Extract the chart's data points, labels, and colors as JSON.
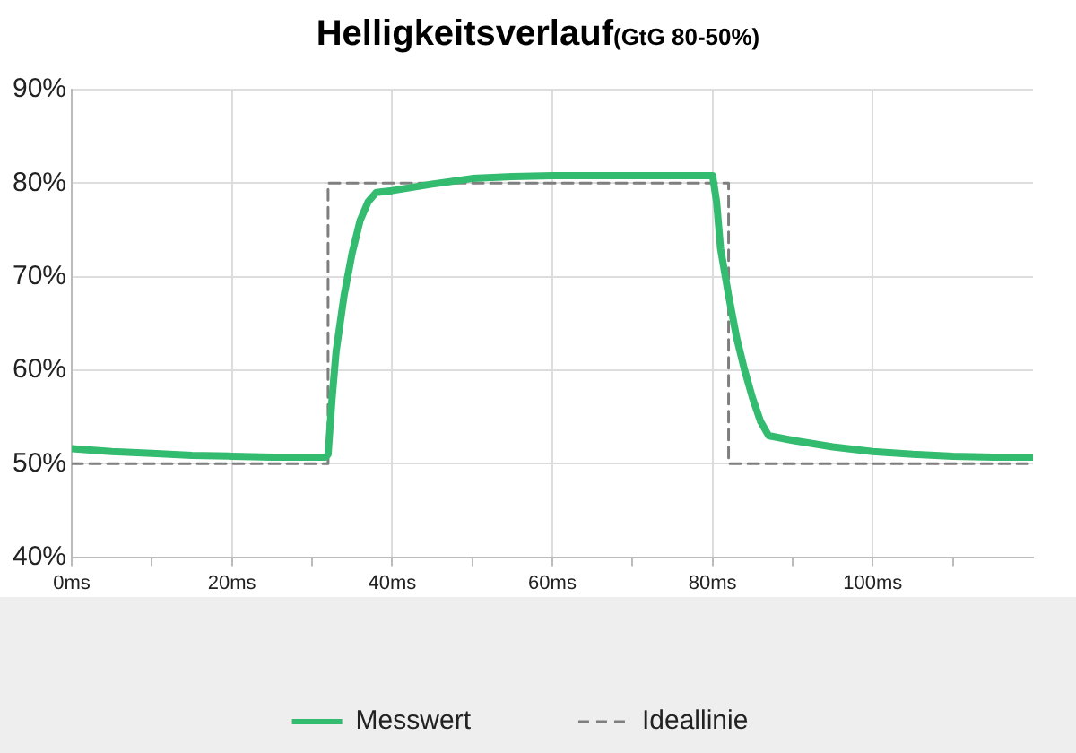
{
  "chart_data": {
    "type": "line",
    "title": "Helligkeitsverlauf",
    "subtitle": "(GtG 80-50%)",
    "xlim": [
      0,
      120
    ],
    "xticks": [
      {
        "value": 0,
        "label": "0ms"
      },
      {
        "value": 10,
        "label": null
      },
      {
        "value": 20,
        "label": "20ms"
      },
      {
        "value": 30,
        "label": null
      },
      {
        "value": 40,
        "label": "40ms"
      },
      {
        "value": 50,
        "label": null
      },
      {
        "value": 60,
        "label": "60ms"
      },
      {
        "value": 70,
        "label": null
      },
      {
        "value": 80,
        "label": "80ms"
      },
      {
        "value": 90,
        "label": null
      },
      {
        "value": 100,
        "label": "100ms"
      },
      {
        "value": 110,
        "label": null
      }
    ],
    "ylim": [
      40,
      90
    ],
    "yticks": [
      {
        "value": 40,
        "label": "40%"
      },
      {
        "value": 50,
        "label": "50%"
      },
      {
        "value": 60,
        "label": "60%"
      },
      {
        "value": 70,
        "label": "70%"
      },
      {
        "value": 80,
        "label": "80%"
      },
      {
        "value": 90,
        "label": "90%"
      }
    ],
    "grid": true,
    "legend": "bottom",
    "marker": "none",
    "series": [
      {
        "name": "Messwert",
        "color": "#33bb70",
        "line_style": "solid",
        "x": [
          0,
          5,
          10,
          15,
          20,
          25,
          31.7,
          32,
          32.5,
          33,
          34,
          35,
          36,
          37,
          38,
          40,
          45,
          50,
          55,
          60,
          70,
          80,
          80.5,
          81,
          82,
          83,
          84,
          85,
          86,
          87,
          90,
          95,
          100,
          105,
          110,
          115,
          120
        ],
        "values": [
          51.6,
          51.3,
          51.1,
          50.9,
          50.8,
          50.7,
          50.7,
          51,
          57,
          62,
          68,
          72.5,
          76,
          78,
          79,
          79.2,
          79.9,
          80.5,
          80.7,
          80.8,
          80.8,
          80.8,
          78,
          73,
          68,
          63.5,
          60,
          57,
          54.5,
          53,
          52.5,
          51.8,
          51.3,
          51,
          50.8,
          50.7,
          50.7
        ]
      },
      {
        "name": "Ideallinie",
        "color": "#7f7f7f",
        "line_style": "dashed",
        "x": [
          0,
          32,
          32,
          82,
          82,
          120
        ],
        "values": [
          50,
          50,
          80,
          80,
          50,
          50
        ]
      }
    ]
  }
}
